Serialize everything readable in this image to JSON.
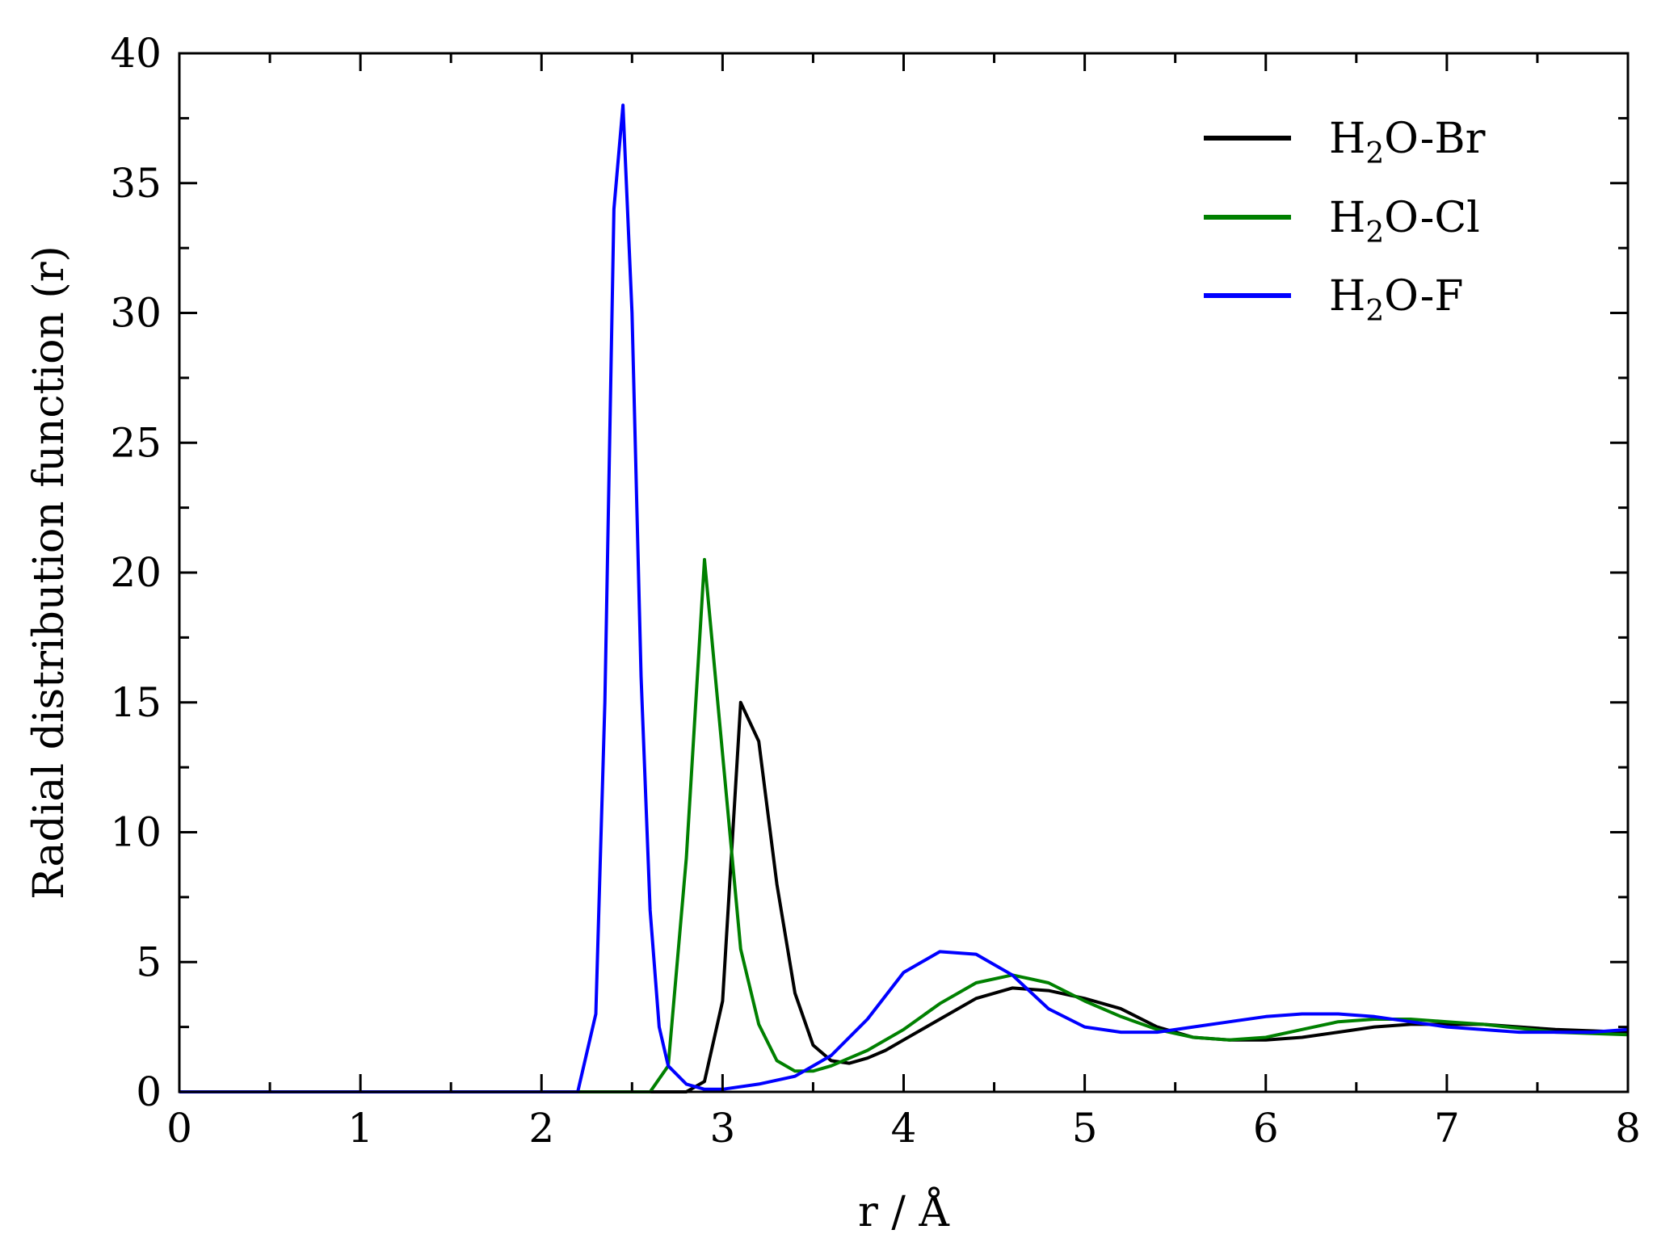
{
  "chart_data": {
    "type": "line",
    "xlabel": "r / Å",
    "ylabel": "Radial distribution function (r)",
    "xlim": [
      0,
      8
    ],
    "ylim": [
      0,
      40
    ],
    "xticks": [
      "0",
      "1",
      "2",
      "3",
      "4",
      "5",
      "6",
      "7",
      "8"
    ],
    "yticks": [
      "0",
      "5",
      "10",
      "15",
      "20",
      "25",
      "30",
      "35",
      "40"
    ],
    "grid": false,
    "legend_position": "top-right",
    "series": [
      {
        "name": "H2O-Br",
        "legend": {
          "prefix": "H",
          "sub": "2",
          "suffix": "O-Br"
        },
        "color": "#000000",
        "x": [
          0,
          2.8,
          2.9,
          3.0,
          3.1,
          3.2,
          3.3,
          3.4,
          3.5,
          3.6,
          3.7,
          3.8,
          3.9,
          4.0,
          4.2,
          4.4,
          4.6,
          4.8,
          5.0,
          5.2,
          5.4,
          5.6,
          5.8,
          6.0,
          6.2,
          6.4,
          6.6,
          6.8,
          7.0,
          7.2,
          7.4,
          7.6,
          8.0
        ],
        "y": [
          0,
          0.0,
          0.4,
          3.5,
          15.0,
          13.5,
          8.0,
          3.8,
          1.8,
          1.2,
          1.1,
          1.3,
          1.6,
          2.0,
          2.8,
          3.6,
          4.0,
          3.9,
          3.6,
          3.2,
          2.5,
          2.1,
          2.0,
          2.0,
          2.1,
          2.3,
          2.5,
          2.6,
          2.6,
          2.6,
          2.5,
          2.4,
          2.3
        ]
      },
      {
        "name": "H2O-Cl",
        "legend": {
          "prefix": "H",
          "sub": "2",
          "suffix": "O-Cl"
        },
        "color": "#008000",
        "x": [
          0,
          2.6,
          2.7,
          2.8,
          2.9,
          3.0,
          3.1,
          3.2,
          3.3,
          3.4,
          3.5,
          3.6,
          3.7,
          3.8,
          4.0,
          4.2,
          4.4,
          4.6,
          4.8,
          5.0,
          5.2,
          5.4,
          5.6,
          5.8,
          6.0,
          6.2,
          6.4,
          6.6,
          6.8,
          7.0,
          7.2,
          7.6,
          8.0
        ],
        "y": [
          0,
          0.0,
          1.0,
          9.0,
          20.5,
          13.0,
          5.5,
          2.6,
          1.2,
          0.8,
          0.8,
          1.0,
          1.3,
          1.6,
          2.4,
          3.4,
          4.2,
          4.5,
          4.2,
          3.5,
          2.9,
          2.4,
          2.1,
          2.0,
          2.1,
          2.4,
          2.7,
          2.8,
          2.8,
          2.7,
          2.6,
          2.3,
          2.2
        ]
      },
      {
        "name": "H2O-F",
        "legend": {
          "prefix": "H",
          "sub": "2",
          "suffix": "O-F"
        },
        "color": "#0000ff",
        "x": [
          0,
          2.2,
          2.3,
          2.35,
          2.4,
          2.45,
          2.5,
          2.55,
          2.6,
          2.65,
          2.7,
          2.8,
          2.9,
          3.0,
          3.2,
          3.4,
          3.6,
          3.8,
          4.0,
          4.2,
          4.4,
          4.6,
          4.8,
          5.0,
          5.2,
          5.4,
          5.6,
          5.8,
          6.0,
          6.2,
          6.4,
          6.6,
          6.8,
          7.0,
          7.4,
          7.8,
          8.0
        ],
        "y": [
          0,
          0.0,
          3.0,
          15.0,
          34.0,
          38.0,
          30.0,
          16.0,
          7.0,
          2.5,
          1.0,
          0.3,
          0.1,
          0.1,
          0.3,
          0.6,
          1.4,
          2.8,
          4.6,
          5.4,
          5.3,
          4.5,
          3.2,
          2.5,
          2.3,
          2.3,
          2.5,
          2.7,
          2.9,
          3.0,
          3.0,
          2.9,
          2.7,
          2.5,
          2.3,
          2.3,
          2.4
        ]
      }
    ]
  }
}
